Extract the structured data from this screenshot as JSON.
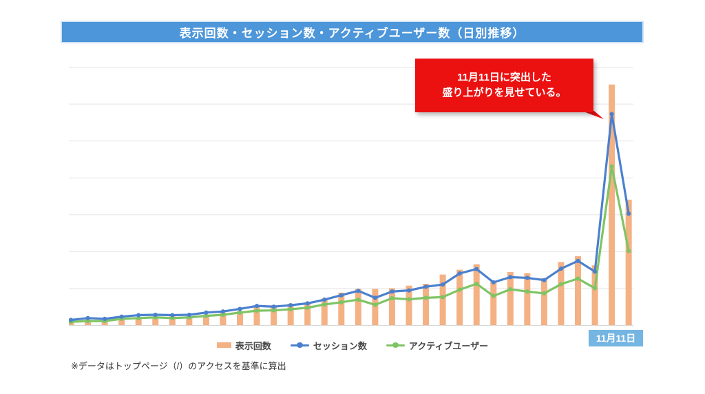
{
  "header": {
    "title": "表示回数・セッション数・アクティブユーザー数（日別推移）",
    "bg_color": "#4d96d9",
    "text_color": "#ffffff"
  },
  "callout": {
    "line1": "11月11日に突出した",
    "line2": "盛り上がりを見せている。",
    "bg_color": "#eb1111",
    "text_color": "#ffffff"
  },
  "date_badge": {
    "label": "11月11日",
    "bg_color": "#74b5e2",
    "text_color": "#ffffff"
  },
  "legend": {
    "items": [
      {
        "label": "表示回数",
        "type": "bar",
        "color": "#f4b183"
      },
      {
        "label": "セッション数",
        "type": "line",
        "color": "#4a80ce"
      },
      {
        "label": "アクティブユーザー",
        "type": "line",
        "color": "#7ec465"
      }
    ]
  },
  "footnote": "※データはトップページ（/）のアクセスを基準に算出",
  "chart_data": {
    "type": "bar",
    "subtype": "combo-bar-line",
    "title": "表示回数・セッション数・アクティブユーザー数（日別推移）",
    "x": [
      1,
      2,
      3,
      4,
      5,
      6,
      7,
      8,
      9,
      10,
      11,
      12,
      13,
      14,
      15,
      16,
      17,
      18,
      19,
      20,
      21,
      22,
      23,
      24,
      25,
      26,
      27,
      28,
      29,
      30,
      31,
      32,
      33,
      34
    ],
    "x_tick_labels_visible": false,
    "y_tick_labels_visible": false,
    "grid": true,
    "gridline_step": 100,
    "ylim": [
      0,
      700
    ],
    "series": [
      {
        "name": "表示回数",
        "type": "bar",
        "color": "#f4b183",
        "values": [
          13,
          15,
          13,
          19,
          21,
          22,
          24,
          24,
          29,
          34,
          38,
          49,
          54,
          58,
          62,
          72,
          88,
          98,
          98,
          100,
          107,
          112,
          137,
          150,
          165,
          119,
          144,
          141,
          127,
          171,
          187,
          162,
          652,
          340
        ]
      },
      {
        "name": "セッション数",
        "type": "line",
        "color": "#4a80ce",
        "values": [
          14,
          19,
          17,
          23,
          27,
          28,
          27,
          28,
          34,
          37,
          44,
          52,
          50,
          54,
          59,
          69,
          81,
          93,
          74,
          91,
          94,
          104,
          110,
          140,
          152,
          116,
          130,
          128,
          122,
          153,
          174,
          145,
          572,
          302
        ]
      },
      {
        "name": "アクティブユーザー",
        "type": "line",
        "color": "#7ec465",
        "values": [
          9,
          11,
          11,
          17,
          19,
          21,
          19,
          21,
          25,
          28,
          34,
          39,
          40,
          43,
          47,
          56,
          62,
          69,
          55,
          73,
          70,
          74,
          76,
          96,
          112,
          79,
          97,
          91,
          86,
          111,
          126,
          100,
          430,
          201
        ]
      }
    ],
    "annotations": [
      {
        "text": "11月11日に突出した盛り上がりを見せている。",
        "points_to_x_index": 32
      },
      {
        "text": "11月11日",
        "x_index": 32,
        "position": "below-axis"
      }
    ],
    "legend_position": "bottom"
  }
}
